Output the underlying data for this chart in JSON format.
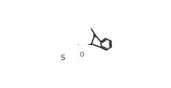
{
  "bg_color": "#ffffff",
  "line_color": "#2a2a2a",
  "line_width": 1.3,
  "figsize": [
    2.48,
    1.29
  ],
  "dpi": 100,
  "xlim": [
    0.0,
    1.0
  ],
  "ylim": [
    0.1,
    0.9
  ]
}
